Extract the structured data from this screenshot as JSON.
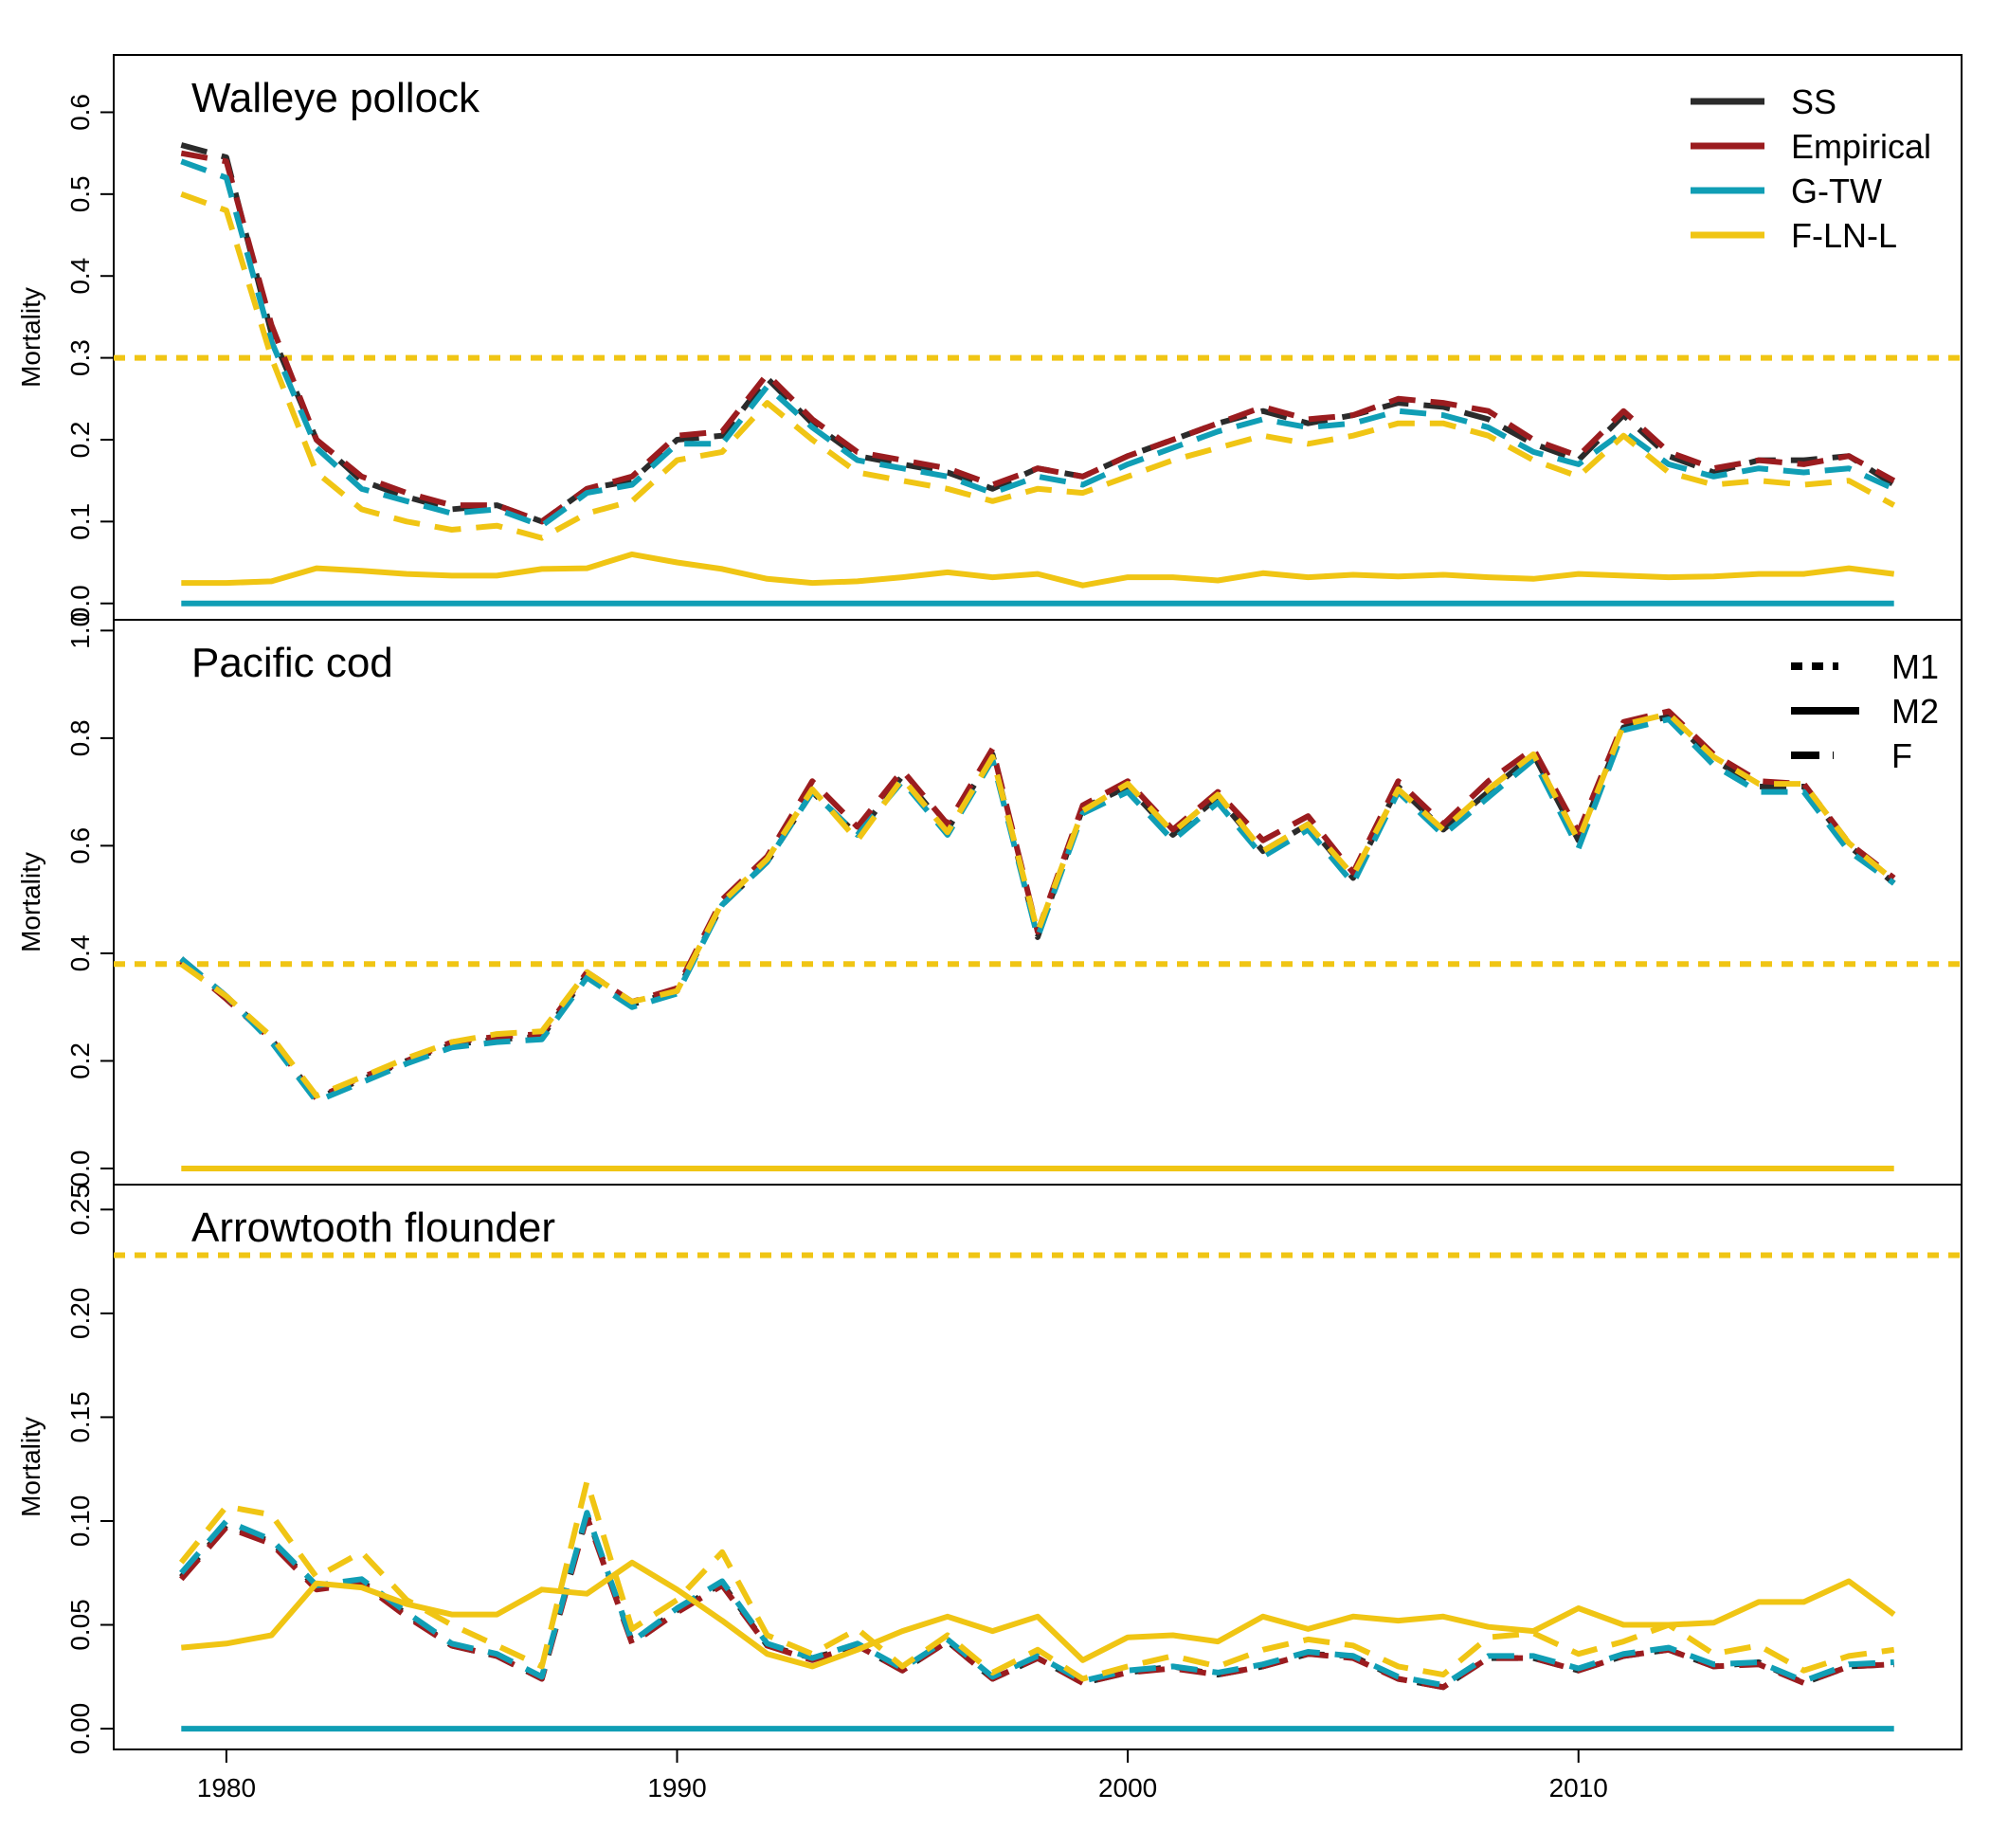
{
  "chart_data": {
    "type": "line",
    "x_axis": {
      "ticks": [
        1980,
        1990,
        2000,
        2010
      ],
      "range": [
        1977.5,
        2018.5
      ]
    },
    "series_styles": [
      {
        "name": "SS",
        "color": "#2b2b2b"
      },
      {
        "name": "Empirical",
        "color": "#9b1c1f"
      },
      {
        "name": "G-TW",
        "color": "#109eb5"
      },
      {
        "name": "F-LN-L",
        "color": "#f0c514"
      }
    ],
    "legend_colors": {
      "items": [
        "SS",
        "Empirical",
        "G-TW",
        "F-LN-L"
      ],
      "placement": "top-right",
      "panel": 0
    },
    "legend_linetypes": {
      "items": [
        "M1",
        "M2",
        "F"
      ],
      "placement": "top-right",
      "panel": 1
    },
    "panels": [
      {
        "title": "Walleye pollock",
        "ylabel": "Mortality",
        "ylim": [
          -0.02,
          0.67
        ],
        "yticks": [
          0.0,
          0.1,
          0.2,
          0.3,
          0.4,
          0.5,
          0.6
        ],
        "ytick_labels": [
          "0.0",
          "0.1",
          "0.2",
          "0.3",
          "0.4",
          "0.5",
          "0.6"
        ],
        "years": [
          1979,
          1980,
          1981,
          1982,
          1983,
          1984,
          1985,
          1986,
          1987,
          1988,
          1989,
          1990,
          1991,
          1992,
          1993,
          1994,
          1995,
          1996,
          1997,
          1998,
          1999,
          2000,
          2001,
          2002,
          2003,
          2004,
          2005,
          2006,
          2007,
          2008,
          2009,
          2010,
          2011,
          2012,
          2013,
          2014,
          2015,
          2016,
          2017
        ],
        "F": {
          "SS": [
            0.56,
            0.545,
            0.33,
            0.2,
            0.15,
            0.13,
            0.115,
            0.12,
            0.1,
            0.14,
            0.15,
            0.2,
            0.205,
            0.275,
            0.22,
            0.18,
            0.17,
            0.16,
            0.14,
            0.165,
            0.155,
            0.18,
            0.2,
            0.22,
            0.235,
            0.22,
            0.23,
            0.245,
            0.24,
            0.225,
            0.195,
            0.175,
            0.23,
            0.18,
            0.16,
            0.175,
            0.175,
            0.18,
            0.145
          ],
          "Empirical": [
            0.55,
            0.54,
            0.34,
            0.2,
            0.155,
            0.135,
            0.12,
            0.12,
            0.1,
            0.14,
            0.155,
            0.205,
            0.21,
            0.28,
            0.225,
            0.185,
            0.175,
            0.165,
            0.145,
            0.165,
            0.155,
            0.18,
            0.2,
            0.22,
            0.24,
            0.225,
            0.23,
            0.25,
            0.245,
            0.235,
            0.2,
            0.18,
            0.235,
            0.185,
            0.165,
            0.175,
            0.17,
            0.18,
            0.15
          ],
          "G-TW": [
            0.54,
            0.52,
            0.32,
            0.19,
            0.14,
            0.125,
            0.11,
            0.115,
            0.095,
            0.135,
            0.145,
            0.195,
            0.195,
            0.265,
            0.215,
            0.175,
            0.165,
            0.155,
            0.135,
            0.155,
            0.145,
            0.17,
            0.19,
            0.21,
            0.225,
            0.215,
            0.22,
            0.235,
            0.23,
            0.215,
            0.185,
            0.17,
            0.21,
            0.17,
            0.155,
            0.165,
            0.16,
            0.165,
            0.14
          ],
          "F-LN-L": [
            0.5,
            0.48,
            0.3,
            0.16,
            0.115,
            0.1,
            0.09,
            0.095,
            0.08,
            0.11,
            0.125,
            0.175,
            0.185,
            0.245,
            0.2,
            0.16,
            0.15,
            0.14,
            0.125,
            0.14,
            0.135,
            0.155,
            0.175,
            0.19,
            0.205,
            0.195,
            0.205,
            0.22,
            0.22,
            0.205,
            0.175,
            0.155,
            0.205,
            0.16,
            0.145,
            0.15,
            0.145,
            0.15,
            0.12
          ]
        },
        "M2": {
          "F-LN-L": [
            0.025,
            0.025,
            0.027,
            0.043,
            0.04,
            0.036,
            0.034,
            0.034,
            0.042,
            0.043,
            0.06,
            0.05,
            0.042,
            0.03,
            0.025,
            0.027,
            0.032,
            0.038,
            0.032,
            0.036,
            0.022,
            0.032,
            0.032,
            0.028,
            0.037,
            0.032,
            0.035,
            0.033,
            0.035,
            0.032,
            0.03,
            0.036,
            0.034,
            0.032,
            0.033,
            0.036,
            0.036,
            0.043,
            0.036
          ],
          "others": [
            0,
            0,
            0,
            0,
            0,
            0,
            0,
            0,
            0,
            0,
            0,
            0,
            0,
            0,
            0,
            0,
            0,
            0,
            0,
            0,
            0,
            0,
            0,
            0,
            0,
            0,
            0,
            0,
            0,
            0,
            0,
            0,
            0,
            0,
            0,
            0,
            0,
            0,
            0
          ]
        },
        "M1": {
          "F-LN-L": 0.3
        }
      },
      {
        "title": "Pacific cod",
        "ylabel": "Mortality",
        "ylim": [
          -0.03,
          1.02
        ],
        "yticks": [
          0.0,
          0.2,
          0.4,
          0.6,
          0.8,
          1.0
        ],
        "ytick_labels": [
          "0.0",
          "0.2",
          "0.4",
          "0.6",
          "0.8",
          "1.0"
        ],
        "years": [
          1979,
          1980,
          1981,
          1982,
          1983,
          1984,
          1985,
          1986,
          1987,
          1988,
          1989,
          1990,
          1991,
          1992,
          1993,
          1994,
          1995,
          1996,
          1997,
          1998,
          1999,
          2000,
          2001,
          2002,
          2003,
          2004,
          2005,
          2006,
          2007,
          2008,
          2009,
          2010,
          2011,
          2012,
          2013,
          2014,
          2015,
          2016,
          2017
        ],
        "F": {
          "SS": [
            0.39,
            0.32,
            0.24,
            0.13,
            0.165,
            0.2,
            0.23,
            0.24,
            0.245,
            0.36,
            0.305,
            0.33,
            0.49,
            0.57,
            0.7,
            0.62,
            0.73,
            0.63,
            0.77,
            0.43,
            0.67,
            0.71,
            0.62,
            0.69,
            0.59,
            0.64,
            0.54,
            0.71,
            0.63,
            0.7,
            0.77,
            0.61,
            0.82,
            0.84,
            0.76,
            0.71,
            0.71,
            0.6,
            0.53
          ],
          "Empirical": [
            0.385,
            0.315,
            0.24,
            0.13,
            0.17,
            0.2,
            0.235,
            0.245,
            0.25,
            0.365,
            0.31,
            0.335,
            0.5,
            0.58,
            0.72,
            0.635,
            0.74,
            0.64,
            0.78,
            0.44,
            0.675,
            0.72,
            0.63,
            0.7,
            0.61,
            0.655,
            0.55,
            0.72,
            0.64,
            0.72,
            0.78,
            0.625,
            0.83,
            0.85,
            0.77,
            0.72,
            0.715,
            0.605,
            0.54
          ],
          "G-TW": [
            0.39,
            0.32,
            0.235,
            0.125,
            0.16,
            0.195,
            0.225,
            0.235,
            0.24,
            0.355,
            0.3,
            0.325,
            0.49,
            0.57,
            0.7,
            0.62,
            0.72,
            0.62,
            0.76,
            0.43,
            0.66,
            0.7,
            0.61,
            0.68,
            0.58,
            0.63,
            0.53,
            0.7,
            0.62,
            0.69,
            0.76,
            0.595,
            0.815,
            0.835,
            0.75,
            0.7,
            0.7,
            0.59,
            0.53
          ],
          "F-LN-L": [
            0.38,
            0.32,
            0.245,
            0.135,
            0.17,
            0.205,
            0.235,
            0.25,
            0.255,
            0.365,
            0.31,
            0.33,
            0.495,
            0.575,
            0.705,
            0.61,
            0.725,
            0.625,
            0.765,
            0.44,
            0.665,
            0.715,
            0.625,
            0.695,
            0.59,
            0.64,
            0.545,
            0.705,
            0.63,
            0.705,
            0.77,
            0.61,
            0.825,
            0.845,
            0.765,
            0.715,
            0.715,
            0.605,
            0.535
          ]
        },
        "M2": {
          "F-LN-L": [
            0,
            0,
            0,
            0,
            0,
            0,
            0,
            0,
            0,
            0,
            0,
            0,
            0,
            0,
            0,
            0,
            0,
            0,
            0,
            0,
            0,
            0,
            0,
            0,
            0,
            0,
            0,
            0,
            0,
            0,
            0,
            0,
            0,
            0,
            0,
            0,
            0,
            0,
            0
          ]
        },
        "M1": {
          "F-LN-L": 0.38
        }
      },
      {
        "title": "Arrowtooth flounder",
        "ylabel": "Mortality",
        "ylim": [
          -0.01,
          0.262
        ],
        "yticks": [
          0.0,
          0.05,
          0.1,
          0.15,
          0.2,
          0.25
        ],
        "ytick_labels": [
          "0.00",
          "0.05",
          "0.10",
          "0.15",
          "0.20",
          "0.25"
        ],
        "years": [
          1979,
          1980,
          1981,
          1982,
          1983,
          1984,
          1985,
          1986,
          1987,
          1988,
          1989,
          1990,
          1991,
          1992,
          1993,
          1994,
          1995,
          1996,
          1997,
          1998,
          1999,
          2000,
          2001,
          2002,
          2003,
          2004,
          2005,
          2006,
          2007,
          2008,
          2009,
          2010,
          2011,
          2012,
          2013,
          2014,
          2015,
          2016,
          2017
        ],
        "F": {
          "SS": [
            0.073,
            0.098,
            0.09,
            0.068,
            0.071,
            0.055,
            0.04,
            0.035,
            0.024,
            0.103,
            0.042,
            0.057,
            0.07,
            0.04,
            0.034,
            0.04,
            0.028,
            0.042,
            0.024,
            0.034,
            0.022,
            0.027,
            0.03,
            0.026,
            0.03,
            0.036,
            0.035,
            0.024,
            0.02,
            0.034,
            0.034,
            0.028,
            0.035,
            0.038,
            0.03,
            0.032,
            0.022,
            0.03,
            0.031
          ],
          "Empirical": [
            0.072,
            0.097,
            0.089,
            0.067,
            0.07,
            0.054,
            0.04,
            0.035,
            0.024,
            0.102,
            0.041,
            0.056,
            0.069,
            0.04,
            0.033,
            0.04,
            0.028,
            0.042,
            0.024,
            0.034,
            0.022,
            0.027,
            0.029,
            0.026,
            0.03,
            0.036,
            0.034,
            0.024,
            0.02,
            0.034,
            0.034,
            0.028,
            0.035,
            0.038,
            0.03,
            0.031,
            0.022,
            0.03,
            0.031
          ],
          "G-TW": [
            0.075,
            0.1,
            0.091,
            0.069,
            0.072,
            0.056,
            0.041,
            0.036,
            0.025,
            0.104,
            0.042,
            0.058,
            0.071,
            0.041,
            0.034,
            0.041,
            0.029,
            0.043,
            0.025,
            0.035,
            0.023,
            0.028,
            0.03,
            0.027,
            0.031,
            0.037,
            0.035,
            0.025,
            0.021,
            0.035,
            0.035,
            0.029,
            0.036,
            0.039,
            0.031,
            0.032,
            0.023,
            0.031,
            0.032
          ],
          "F-LN-L": [
            0.08,
            0.107,
            0.103,
            0.073,
            0.085,
            0.062,
            0.05,
            0.04,
            0.03,
            0.119,
            0.048,
            0.062,
            0.085,
            0.045,
            0.036,
            0.048,
            0.03,
            0.045,
            0.027,
            0.038,
            0.024,
            0.03,
            0.035,
            0.03,
            0.038,
            0.043,
            0.04,
            0.03,
            0.026,
            0.044,
            0.046,
            0.036,
            0.042,
            0.05,
            0.036,
            0.04,
            0.028,
            0.035,
            0.038
          ]
        },
        "M2": {
          "F-LN-L": [
            0.039,
            0.041,
            0.045,
            0.07,
            0.068,
            0.06,
            0.055,
            0.055,
            0.067,
            0.065,
            0.08,
            0.067,
            0.052,
            0.036,
            0.03,
            0.038,
            0.047,
            0.054,
            0.047,
            0.054,
            0.033,
            0.044,
            0.045,
            0.042,
            0.054,
            0.048,
            0.054,
            0.052,
            0.054,
            0.049,
            0.047,
            0.058,
            0.05,
            0.05,
            0.051,
            0.061,
            0.061,
            0.071,
            0.055
          ],
          "others": [
            0,
            0,
            0,
            0,
            0,
            0,
            0,
            0,
            0,
            0,
            0,
            0,
            0,
            0,
            0,
            0,
            0,
            0,
            0,
            0,
            0,
            0,
            0,
            0,
            0,
            0,
            0,
            0,
            0,
            0,
            0,
            0,
            0,
            0,
            0,
            0,
            0,
            0,
            0
          ]
        },
        "M1": {
          "F-LN-L": 0.228
        }
      }
    ]
  }
}
